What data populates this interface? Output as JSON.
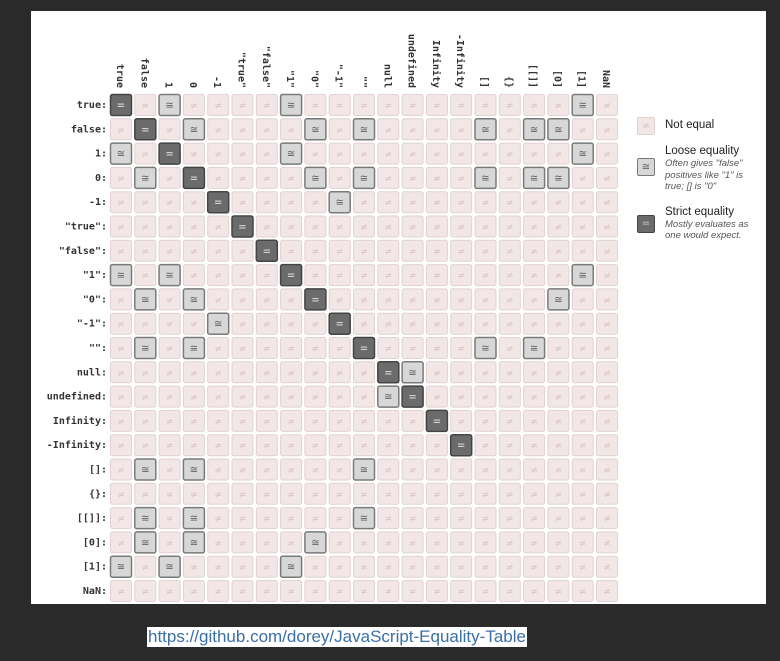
{
  "chart_data": {
    "type": "heatmap",
    "title": "",
    "values_list": [
      "true",
      "false",
      "1",
      "0",
      "-1",
      "\"true\"",
      "\"false\"",
      "\"1\"",
      "\"0\"",
      "\"-1\"",
      "\"\"",
      "null",
      "undefined",
      "Infinity",
      "-Infinity",
      "[]",
      "{}",
      "[[]]",
      "[0]",
      "[1]",
      "NaN"
    ],
    "value_categories": {
      "0": "not equal",
      "1": "loose equality",
      "2": "strict equality"
    },
    "matrix": [
      [
        2,
        0,
        1,
        0,
        0,
        0,
        0,
        1,
        0,
        0,
        0,
        0,
        0,
        0,
        0,
        0,
        0,
        0,
        0,
        1,
        0
      ],
      [
        0,
        2,
        0,
        1,
        0,
        0,
        0,
        0,
        1,
        0,
        1,
        0,
        0,
        0,
        0,
        1,
        0,
        1,
        1,
        0,
        0
      ],
      [
        1,
        0,
        2,
        0,
        0,
        0,
        0,
        1,
        0,
        0,
        0,
        0,
        0,
        0,
        0,
        0,
        0,
        0,
        0,
        1,
        0
      ],
      [
        0,
        1,
        0,
        2,
        0,
        0,
        0,
        0,
        1,
        0,
        1,
        0,
        0,
        0,
        0,
        1,
        0,
        1,
        1,
        0,
        0
      ],
      [
        0,
        0,
        0,
        0,
        2,
        0,
        0,
        0,
        0,
        1,
        0,
        0,
        0,
        0,
        0,
        0,
        0,
        0,
        0,
        0,
        0
      ],
      [
        0,
        0,
        0,
        0,
        0,
        2,
        0,
        0,
        0,
        0,
        0,
        0,
        0,
        0,
        0,
        0,
        0,
        0,
        0,
        0,
        0
      ],
      [
        0,
        0,
        0,
        0,
        0,
        0,
        2,
        0,
        0,
        0,
        0,
        0,
        0,
        0,
        0,
        0,
        0,
        0,
        0,
        0,
        0
      ],
      [
        1,
        0,
        1,
        0,
        0,
        0,
        0,
        2,
        0,
        0,
        0,
        0,
        0,
        0,
        0,
        0,
        0,
        0,
        0,
        1,
        0
      ],
      [
        0,
        1,
        0,
        1,
        0,
        0,
        0,
        0,
        2,
        0,
        0,
        0,
        0,
        0,
        0,
        0,
        0,
        0,
        1,
        0,
        0
      ],
      [
        0,
        0,
        0,
        0,
        1,
        0,
        0,
        0,
        0,
        2,
        0,
        0,
        0,
        0,
        0,
        0,
        0,
        0,
        0,
        0,
        0
      ],
      [
        0,
        1,
        0,
        1,
        0,
        0,
        0,
        0,
        0,
        0,
        2,
        0,
        0,
        0,
        0,
        1,
        0,
        1,
        0,
        0,
        0
      ],
      [
        0,
        0,
        0,
        0,
        0,
        0,
        0,
        0,
        0,
        0,
        0,
        2,
        1,
        0,
        0,
        0,
        0,
        0,
        0,
        0,
        0
      ],
      [
        0,
        0,
        0,
        0,
        0,
        0,
        0,
        0,
        0,
        0,
        0,
        1,
        2,
        0,
        0,
        0,
        0,
        0,
        0,
        0,
        0
      ],
      [
        0,
        0,
        0,
        0,
        0,
        0,
        0,
        0,
        0,
        0,
        0,
        0,
        0,
        2,
        0,
        0,
        0,
        0,
        0,
        0,
        0
      ],
      [
        0,
        0,
        0,
        0,
        0,
        0,
        0,
        0,
        0,
        0,
        0,
        0,
        0,
        0,
        2,
        0,
        0,
        0,
        0,
        0,
        0
      ],
      [
        0,
        1,
        0,
        1,
        0,
        0,
        0,
        0,
        0,
        0,
        1,
        0,
        0,
        0,
        0,
        0,
        0,
        0,
        0,
        0,
        0
      ],
      [
        0,
        0,
        0,
        0,
        0,
        0,
        0,
        0,
        0,
        0,
        0,
        0,
        0,
        0,
        0,
        0,
        0,
        0,
        0,
        0,
        0
      ],
      [
        0,
        1,
        0,
        1,
        0,
        0,
        0,
        0,
        0,
        0,
        1,
        0,
        0,
        0,
        0,
        0,
        0,
        0,
        0,
        0,
        0
      ],
      [
        0,
        1,
        0,
        1,
        0,
        0,
        0,
        0,
        1,
        0,
        0,
        0,
        0,
        0,
        0,
        0,
        0,
        0,
        0,
        0,
        0
      ],
      [
        1,
        0,
        1,
        0,
        0,
        0,
        0,
        1,
        0,
        0,
        0,
        0,
        0,
        0,
        0,
        0,
        0,
        0,
        0,
        0,
        0
      ],
      [
        0,
        0,
        0,
        0,
        0,
        0,
        0,
        0,
        0,
        0,
        0,
        0,
        0,
        0,
        0,
        0,
        0,
        0,
        0,
        0,
        0
      ]
    ],
    "symbols": {
      "not_equal": "≠",
      "loose": "≅",
      "strict": "="
    },
    "colors": {
      "not_equal_fill": "#f3e6e6",
      "loose_fill": "#d7d7d7",
      "strict_fill": "#6b6b6b"
    },
    "legend": [
      {
        "key": "not_equal",
        "title": "Not equal",
        "note": ""
      },
      {
        "key": "loose",
        "title": "Loose equality",
        "note": "Often gives \"false\" positives like \"1\" is true; [] is \"0\""
      },
      {
        "key": "strict",
        "title": "Strict equality",
        "note": "Mostly evaluates as one would expect."
      }
    ],
    "legend_position": "right",
    "grid": true
  },
  "footer": {
    "link_text": "https://github.com/dorey/JavaScript-Equality-Table"
  }
}
